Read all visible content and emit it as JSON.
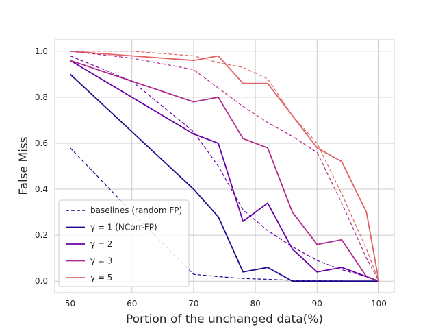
{
  "chart_data": {
    "type": "line",
    "title": "",
    "xlabel": "Portion of the unchanged data(%)",
    "ylabel": "False Miss",
    "xlim": [
      47.5,
      102.5
    ],
    "ylim": [
      -0.05,
      1.05
    ],
    "xticks": [
      50,
      60,
      70,
      80,
      90,
      100
    ],
    "yticks": [
      0.0,
      0.2,
      0.4,
      0.6,
      0.8,
      1.0
    ],
    "xtick_labels": [
      "50",
      "60",
      "70",
      "80",
      "90",
      "100"
    ],
    "ytick_labels": [
      "0.0",
      "0.2",
      "0.4",
      "0.6",
      "0.8",
      "1.0"
    ],
    "grid": true,
    "legend_position": "lower-left",
    "legend": [
      {
        "label": "baselines (random FP)",
        "color": "#1a0a8c",
        "dashed": true
      },
      {
        "label": "γ = 1 (NCorr-FP)",
        "color": "#1a0a8c",
        "dashed": false
      },
      {
        "label": "γ = 2",
        "color": "#6a00a8",
        "dashed": false
      },
      {
        "label": "γ = 3",
        "color": "#b12a90",
        "dashed": false
      },
      {
        "label": "γ = 5",
        "color": "#e16462",
        "dashed": false
      }
    ],
    "series": [
      {
        "color": "#1a0a8c",
        "dashed": false,
        "x": [
          50,
          70,
          74,
          78,
          82,
          86,
          90,
          94,
          98,
          100
        ],
        "y": [
          0.9,
          0.4,
          0.28,
          0.04,
          0.06,
          0.0,
          0.0,
          0.0,
          0.0,
          0.0
        ]
      },
      {
        "color": "#6a00a8",
        "dashed": false,
        "x": [
          50,
          70,
          74,
          78,
          82,
          86,
          90,
          94,
          98,
          100
        ],
        "y": [
          0.96,
          0.64,
          0.6,
          0.26,
          0.34,
          0.14,
          0.04,
          0.06,
          0.02,
          0.0
        ]
      },
      {
        "color": "#b12a90",
        "dashed": false,
        "x": [
          50,
          70,
          74,
          78,
          82,
          86,
          90,
          94,
          98,
          100
        ],
        "y": [
          0.96,
          0.78,
          0.8,
          0.62,
          0.58,
          0.3,
          0.16,
          0.18,
          0.02,
          0.0
        ]
      },
      {
        "color": "#e16462",
        "dashed": false,
        "x": [
          50,
          70,
          74,
          78,
          82,
          86,
          90,
          94,
          98,
          100
        ],
        "y": [
          1.0,
          0.96,
          0.98,
          0.86,
          0.86,
          0.72,
          0.58,
          0.52,
          0.3,
          0.0
        ]
      },
      {
        "color": "#1a0a8c",
        "dashed": true,
        "x": [
          50,
          60,
          70,
          74,
          78,
          82,
          86,
          90,
          94,
          98,
          100
        ],
        "y": [
          0.58,
          0.3,
          0.03,
          0.02,
          0.012,
          0.008,
          0.004,
          0.002,
          0.001,
          0.0,
          0.0
        ]
      },
      {
        "color": "#6a00a8",
        "dashed": true,
        "x": [
          50,
          60,
          70,
          74,
          78,
          82,
          86,
          90,
          94,
          98,
          100
        ],
        "y": [
          0.98,
          0.87,
          0.65,
          0.5,
          0.31,
          0.22,
          0.15,
          0.09,
          0.05,
          0.02,
          0.0
        ]
      },
      {
        "color": "#b12a90",
        "dashed": true,
        "x": [
          50,
          60,
          70,
          74,
          78,
          82,
          86,
          90,
          94,
          98,
          100
        ],
        "y": [
          1.0,
          0.97,
          0.92,
          0.84,
          0.76,
          0.69,
          0.63,
          0.56,
          0.34,
          0.1,
          0.0
        ]
      },
      {
        "color": "#e16462",
        "dashed": true,
        "x": [
          50,
          60,
          70,
          74,
          78,
          82,
          86,
          90,
          94,
          98,
          100
        ],
        "y": [
          1.0,
          1.0,
          0.98,
          0.95,
          0.93,
          0.88,
          0.72,
          0.6,
          0.38,
          0.14,
          0.0
        ]
      }
    ]
  }
}
